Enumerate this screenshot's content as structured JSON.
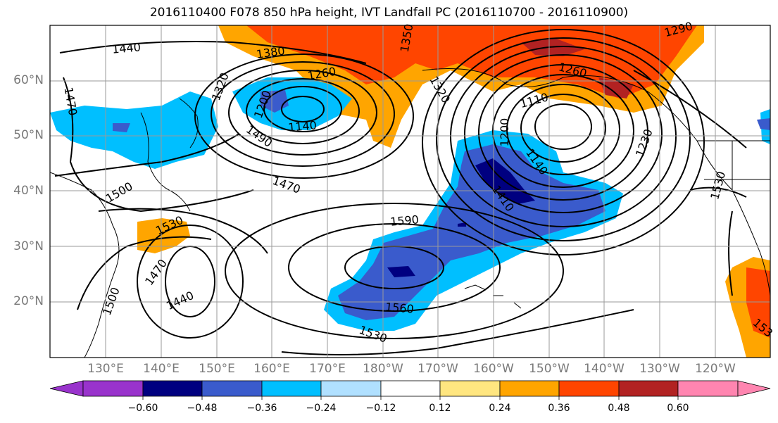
{
  "title": "2016110400 F078 850 hPa height, IVT Landfall PC (2016110700 - 2016110900)",
  "lat_labels": [
    "60°N",
    "50°N",
    "40°N",
    "30°N",
    "20°N"
  ],
  "lon_labels": [
    "130°E",
    "140°E",
    "150°E",
    "160°E",
    "170°E",
    "180°W",
    "170°W",
    "160°W",
    "150°W",
    "140°W",
    "130°W",
    "120°W"
  ],
  "colorbar": {
    "ticks": [
      "−0.60",
      "−0.48",
      "−0.36",
      "−0.24",
      "−0.12",
      "0.12",
      "0.24",
      "0.36",
      "0.48",
      "0.60"
    ],
    "colors": [
      "#9933cc",
      "#000080",
      "#3a5bcc",
      "#00bfff",
      "#b0e0ff",
      "#ffffff",
      "#ffe680",
      "#ffa500",
      "#ff4500",
      "#b22222",
      "#ff85b0"
    ]
  },
  "contour_labels": [
    {
      "text": "1440",
      "rot": -5
    },
    {
      "text": "1380",
      "rot": -8
    },
    {
      "text": "1470",
      "rot": 80
    },
    {
      "text": "1320",
      "rot": -70
    },
    {
      "text": "1260",
      "rot": -10
    },
    {
      "text": "1200",
      "rot": -70
    },
    {
      "text": "1140",
      "rot": -5
    },
    {
      "text": "1490",
      "rot": 35
    },
    {
      "text": "1500",
      "rot": -30
    },
    {
      "text": "1470",
      "rot": 20
    },
    {
      "text": "1530",
      "rot": -25
    },
    {
      "text": "1470",
      "rot": -55
    },
    {
      "text": "1440",
      "rot": -25
    },
    {
      "text": "1500",
      "rot": -70
    },
    {
      "text": "1590",
      "rot": -5
    },
    {
      "text": "1560",
      "rot": 5
    },
    {
      "text": "1530",
      "rot": 20
    },
    {
      "text": "1410",
      "rot": 55
    },
    {
      "text": "1140",
      "rot": 55
    },
    {
      "text": "1200",
      "rot": -90
    },
    {
      "text": "1110",
      "rot": -15
    },
    {
      "text": "1260",
      "rot": 15
    },
    {
      "text": "1230",
      "rot": -70
    },
    {
      "text": "1320",
      "rot": 60
    },
    {
      "text": "1350",
      "rot": -80
    },
    {
      "text": "1530",
      "rot": -75
    },
    {
      "text": "1290",
      "rot": -15
    },
    {
      "text": "153",
      "rot": 40
    }
  ]
}
